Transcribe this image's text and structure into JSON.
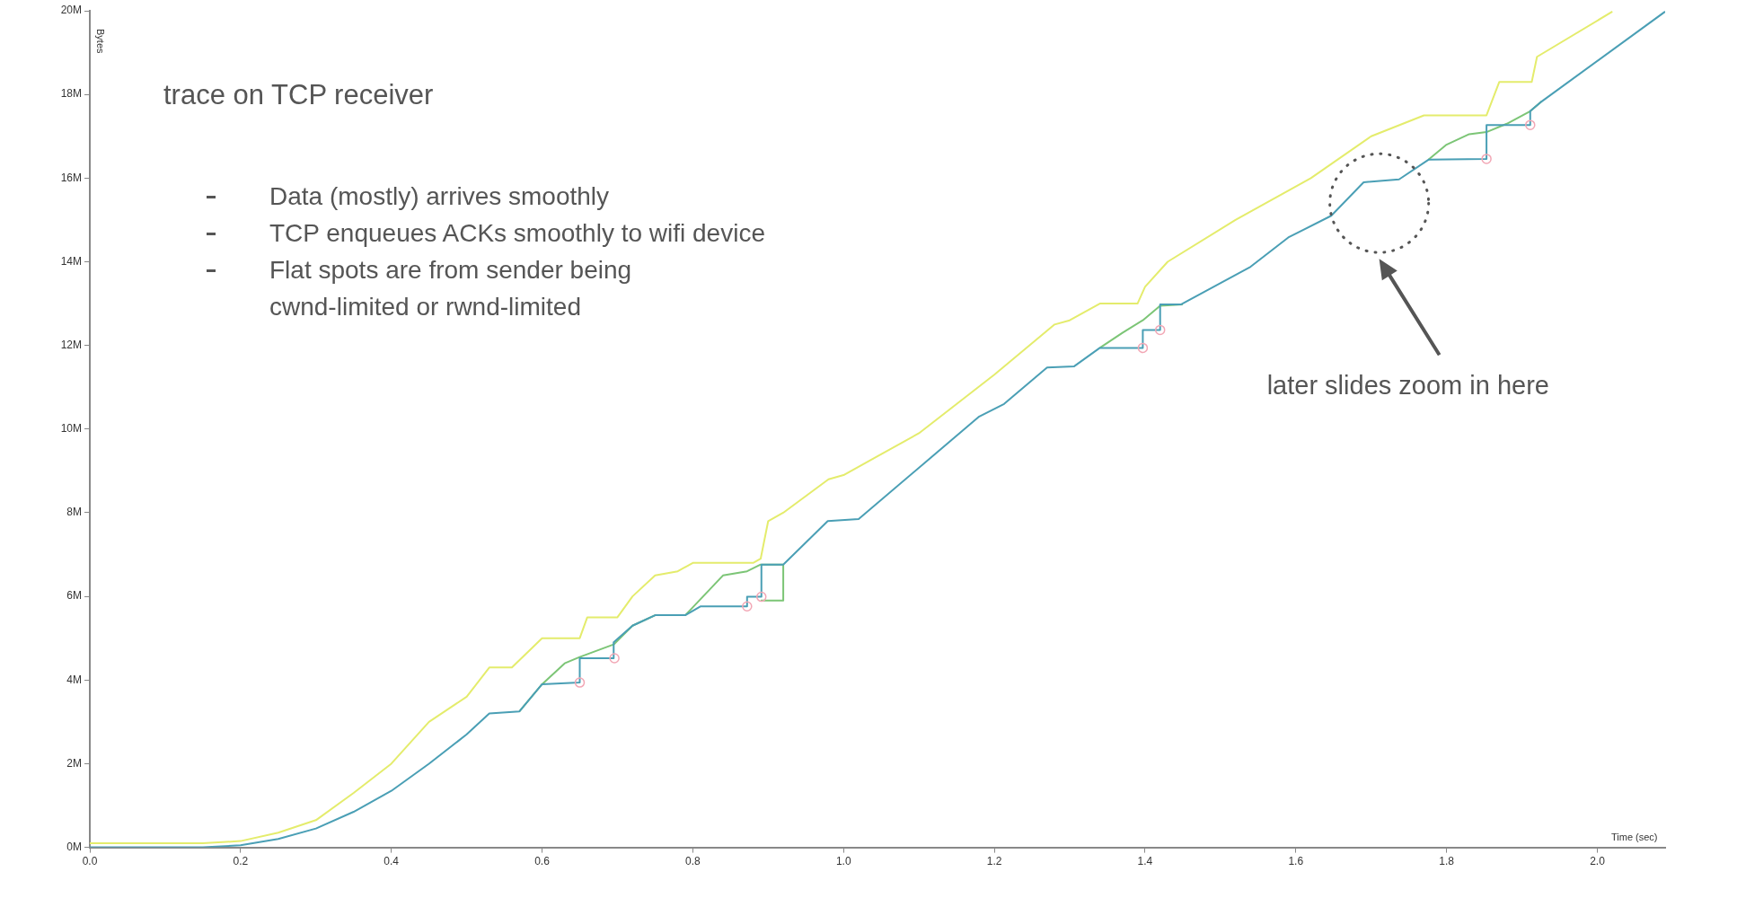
{
  "chart_data": {
    "type": "line",
    "title": "trace on TCP receiver",
    "xlabel": "Time (sec)",
    "ylabel": "Bytes",
    "xlim": [
      0,
      2.09
    ],
    "ylim": [
      0,
      20
    ],
    "xticks": [
      {
        "value": 0,
        "label": "0.0"
      },
      {
        "value": 0.2,
        "label": "0.2"
      },
      {
        "value": 0.4,
        "label": "0.4"
      },
      {
        "value": 0.6,
        "label": "0.6"
      },
      {
        "value": 0.8,
        "label": "0.8"
      },
      {
        "value": 1,
        "label": "1.0"
      },
      {
        "value": 1.2,
        "label": "1.2"
      },
      {
        "value": 1.4,
        "label": "1.4"
      },
      {
        "value": 1.6,
        "label": "1.6"
      },
      {
        "value": 1.8,
        "label": "1.8"
      },
      {
        "value": 2,
        "label": "2.0"
      }
    ],
    "yticks": [
      {
        "value": 0,
        "label": "0M"
      },
      {
        "value": 2,
        "label": "2M"
      },
      {
        "value": 4,
        "label": "4M"
      },
      {
        "value": 6,
        "label": "6M"
      },
      {
        "value": 8,
        "label": "8M"
      },
      {
        "value": 10,
        "label": "10M"
      },
      {
        "value": 12,
        "label": "12M"
      },
      {
        "value": 14,
        "label": "14M"
      },
      {
        "value": 16,
        "label": "16M"
      },
      {
        "value": 18,
        "label": "18M"
      },
      {
        "value": 20,
        "label": "20M"
      }
    ],
    "grid": false,
    "series": [
      {
        "color": "#e4ec6c",
        "x": [
          0,
          0.15,
          0.2,
          0.25,
          0.3,
          0.35,
          0.4,
          0.45,
          0.5,
          0.53,
          0.56,
          0.6,
          0.65,
          0.66,
          0.7,
          0.72,
          0.75,
          0.78,
          0.8,
          0.88,
          0.89,
          0.9,
          0.92,
          0.98,
          1.0,
          1.1,
          1.2,
          1.28,
          1.3,
          1.34,
          1.39,
          1.4,
          1.43,
          1.52,
          1.62,
          1.7,
          1.77,
          1.853,
          1.87,
          1.913,
          1.92,
          2.02
        ],
        "values": [
          0.1,
          0.1,
          0.15,
          0.35,
          0.65,
          1.3,
          2.0,
          3.0,
          3.6,
          4.3,
          4.3,
          5.0,
          5.0,
          5.5,
          5.5,
          6.0,
          6.5,
          6.6,
          6.8,
          6.8,
          6.9,
          7.8,
          8.0,
          8.8,
          8.9,
          9.9,
          11.3,
          12.5,
          12.6,
          13.0,
          13.0,
          13.4,
          14.0,
          15.0,
          16.0,
          17.0,
          17.5,
          17.5,
          18.3,
          18.3,
          18.9,
          19.98
        ]
      },
      {
        "color": "#7cc576",
        "x": [
          0.57,
          0.6,
          0.63,
          0.65,
          0.695,
          0.72,
          0.75,
          0.79,
          0.84,
          0.872,
          0.89,
          0.92,
          0.92,
          0.89,
          1.0,
          1.34,
          1.37,
          1.397,
          1.42,
          1.45,
          1.6,
          1.776,
          1.8,
          1.83,
          1.853,
          1.88,
          1.911,
          1.926
        ],
        "values": [
          3.25,
          3.9,
          4.4,
          4.55,
          4.85,
          5.3,
          5.55,
          5.55,
          6.5,
          6.6,
          6.76,
          6.76,
          5.9,
          5.9,
          null,
          11.94,
          12.3,
          12.6,
          12.95,
          12.98,
          null,
          16.44,
          16.8,
          17.05,
          17.1,
          17.3,
          17.6,
          17.83
        ]
      },
      {
        "color": "#4a9fb5",
        "x": [
          0,
          0.15,
          0.2,
          0.25,
          0.3,
          0.35,
          0.4,
          0.45,
          0.5,
          0.53,
          0.57,
          0.6,
          0.65,
          0.65,
          0.695,
          0.695,
          0.72,
          0.75,
          0.79,
          0.81,
          0.872,
          0.872,
          0.891,
          0.891,
          0.92,
          0.979,
          1.02,
          1.18,
          1.213,
          1.27,
          1.306,
          1.34,
          1.397,
          1.397,
          1.42,
          1.42,
          1.448,
          1.54,
          1.59,
          1.647,
          1.69,
          1.737,
          1.776,
          1.853,
          1.853,
          1.911,
          1.911,
          1.926,
          2.09
        ],
        "values": [
          0,
          0,
          0.05,
          0.2,
          0.45,
          0.85,
          1.35,
          2.0,
          2.7,
          3.2,
          3.25,
          3.9,
          3.94,
          4.52,
          4.52,
          4.9,
          5.3,
          5.55,
          5.55,
          5.76,
          5.76,
          5.99,
          5.99,
          6.76,
          6.76,
          7.8,
          7.85,
          10.3,
          10.6,
          11.47,
          11.5,
          11.94,
          11.94,
          12.37,
          12.37,
          12.98,
          12.98,
          13.88,
          14.58,
          15.1,
          15.9,
          15.97,
          16.44,
          16.46,
          17.27,
          17.27,
          17.6,
          17.83,
          19.98
        ]
      },
      {
        "type": "scatter",
        "color": "#f2a7b5",
        "marker": "circle",
        "x": [
          0.65,
          0.696,
          0.872,
          0.891,
          1.397,
          1.42,
          1.853,
          1.911
        ],
        "values": [
          3.94,
          4.52,
          5.76,
          5.99,
          11.94,
          12.37,
          16.46,
          17.27
        ]
      }
    ],
    "annotations": [
      "Data (mostly) arrives smoothly",
      "TCP enqueues ACKs smoothly to wifi device",
      "Flat spots are from sender being\ncwnd-limited or rwnd-limited",
      "later slides zoom in here"
    ]
  }
}
